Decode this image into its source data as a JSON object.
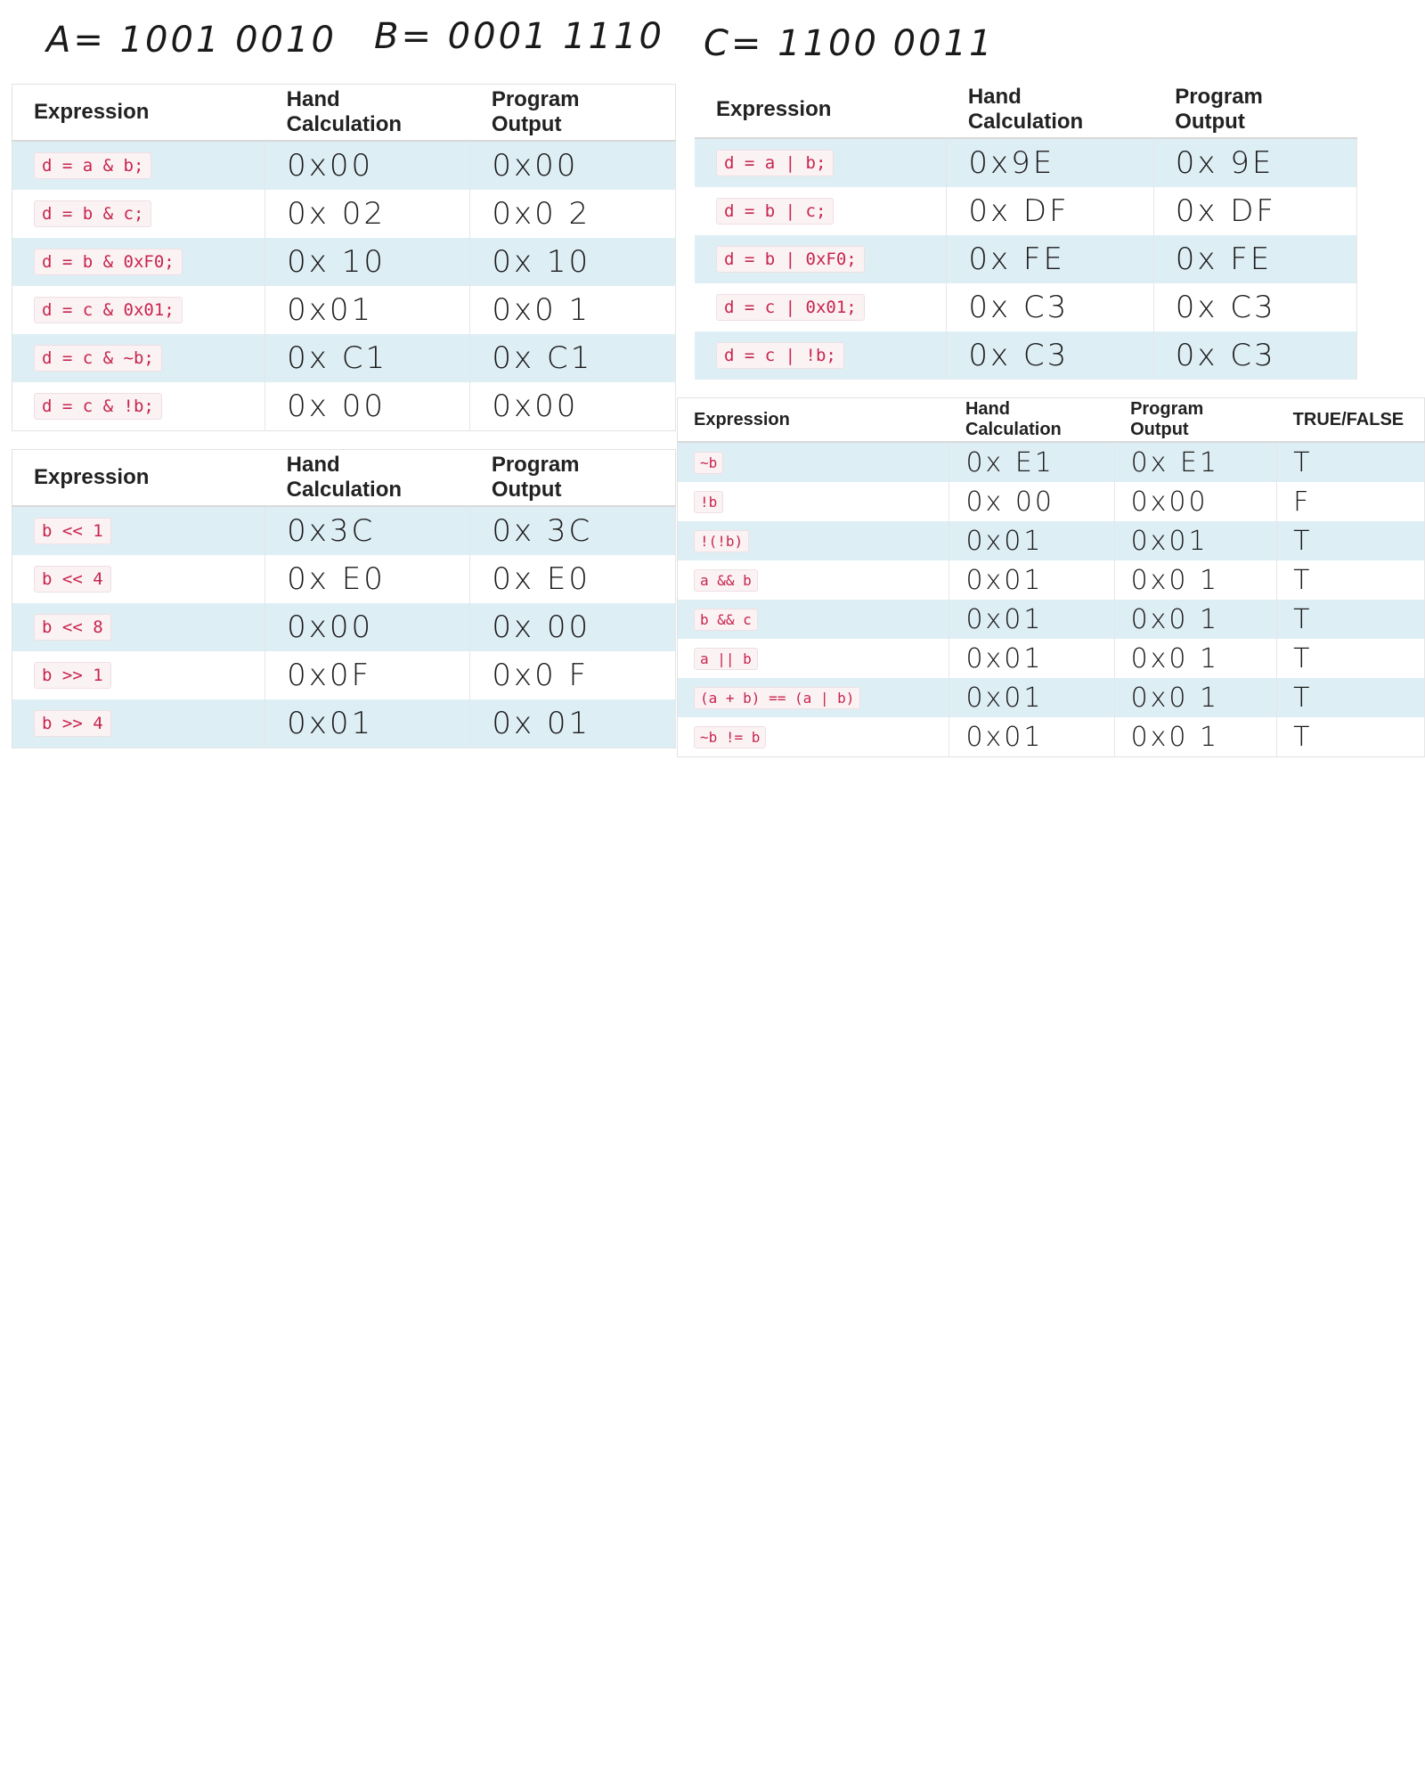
{
  "header": {
    "vars": [
      {
        "text": "A= 1001 0010"
      },
      {
        "text": "B= 0001 1110"
      },
      {
        "text": "C= 1100 0011"
      }
    ]
  },
  "columns": {
    "expression": "Expression",
    "hand": "Hand Calculation",
    "program": "Program Output",
    "truefalse": "TRUE/FALSE"
  },
  "and_table": {
    "rows": [
      {
        "expr": "d = a & b;",
        "hand": "0x00",
        "program": "0x00"
      },
      {
        "expr": "d = b & c;",
        "hand": "0x 02",
        "program": "0x0 2"
      },
      {
        "expr": "d = b & 0xF0;",
        "hand": "0x 10",
        "program": "0x 10"
      },
      {
        "expr": "d = c & 0x01;",
        "hand": "0x01",
        "program": "0x0 1"
      },
      {
        "expr": "d = c & ~b;",
        "hand": "0x C1",
        "program": "0x C1"
      },
      {
        "expr": "d = c & !b;",
        "hand": "0x 00",
        "program": "0x00"
      }
    ]
  },
  "or_table": {
    "rows": [
      {
        "expr": "d = a | b;",
        "hand": "0x9E",
        "program": "0x 9E"
      },
      {
        "expr": "d = b | c;",
        "hand": "0x DF",
        "program": "0x DF"
      },
      {
        "expr": "d = b | 0xF0;",
        "hand": "0x FE",
        "program": "0x FE"
      },
      {
        "expr": "d = c | 0x01;",
        "hand": "0x C3",
        "program": "0x C3"
      },
      {
        "expr": "d = c | !b;",
        "hand": "0x C3",
        "program": "0x C3"
      }
    ]
  },
  "shift_table": {
    "rows": [
      {
        "expr": "b << 1",
        "hand": "0x3C",
        "program": "0x 3C"
      },
      {
        "expr": "b << 4",
        "hand": "0x E0",
        "program": "0x E0"
      },
      {
        "expr": "b << 8",
        "hand": "0x00",
        "program": "0x 00"
      },
      {
        "expr": "b >> 1",
        "hand": "0x0F",
        "program": "0x0 F"
      },
      {
        "expr": "b >> 4",
        "hand": "0x01",
        "program": "0x 01"
      }
    ]
  },
  "logic_table": {
    "rows": [
      {
        "expr": "~b",
        "hand": "0x E1",
        "program": "0x E1",
        "tf": "T"
      },
      {
        "expr": "!b",
        "hand": "0x 00",
        "program": "0x00",
        "tf": "F"
      },
      {
        "expr": "!(!b)",
        "hand": "0x01",
        "program": "0x01",
        "tf": "T"
      },
      {
        "expr": "a && b",
        "hand": "0x01",
        "program": "0x0 1",
        "tf": "T"
      },
      {
        "expr": "b && c",
        "hand": "0x01",
        "program": "0x0 1",
        "tf": "T"
      },
      {
        "expr": "a || b",
        "hand": "0x01",
        "program": "0x0 1",
        "tf": "T"
      },
      {
        "expr": "(a + b) == (a | b)",
        "hand": "0x01",
        "program": "0x0 1",
        "tf": "T"
      },
      {
        "expr": "~b != b",
        "hand": "0x01",
        "program": "0x0 1",
        "tf": "T"
      }
    ]
  }
}
